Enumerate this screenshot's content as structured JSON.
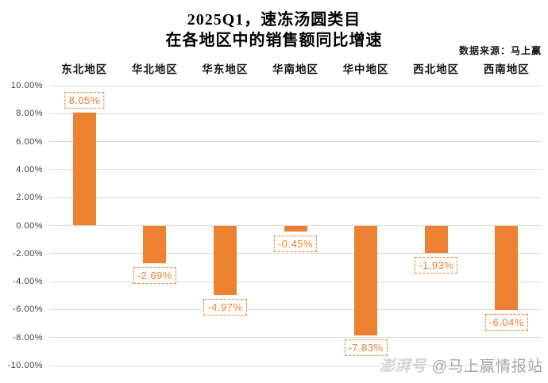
{
  "title": {
    "line1": "2025Q1，速冻汤圆类目",
    "line2": "在各地区中的销售额同比增速"
  },
  "source": "数据来源：马上赢",
  "watermark": {
    "logo": "澎湃号",
    "handle": "@马上赢情报站"
  },
  "colors": {
    "bar": "#ed8132",
    "grid": "#d9d9d9",
    "axis_text": "#3f3f3f",
    "label_accent": "#ed8132"
  },
  "chart_data": {
    "type": "bar",
    "title": "2025Q1，速冻汤圆类目 在各地区中的销售额同比增速",
    "categories": [
      "东北地区",
      "华北地区",
      "华东地区",
      "华南地区",
      "华中地区",
      "西北地区",
      "西南地区"
    ],
    "values": [
      8.05,
      -2.69,
      -4.97,
      -0.45,
      -7.83,
      -1.93,
      -6.04
    ],
    "data_labels": [
      "8.05%",
      "-2.69%",
      "-4.97%",
      "-0.45%",
      "-7.83%",
      "-1.93%",
      "-6.04%"
    ],
    "xlabel": "",
    "ylabel": "",
    "ylim": [
      -10,
      10
    ],
    "ytick_step": 2,
    "ytick_labels": [
      "10.00%",
      "8.00%",
      "6.00%",
      "4.00%",
      "2.00%",
      "0.00%",
      "-2.00%",
      "-4.00%",
      "-6.00%",
      "-8.00%",
      "-10.00%"
    ],
    "grid": true,
    "legend_position": "none",
    "category_labels_position": "top"
  }
}
